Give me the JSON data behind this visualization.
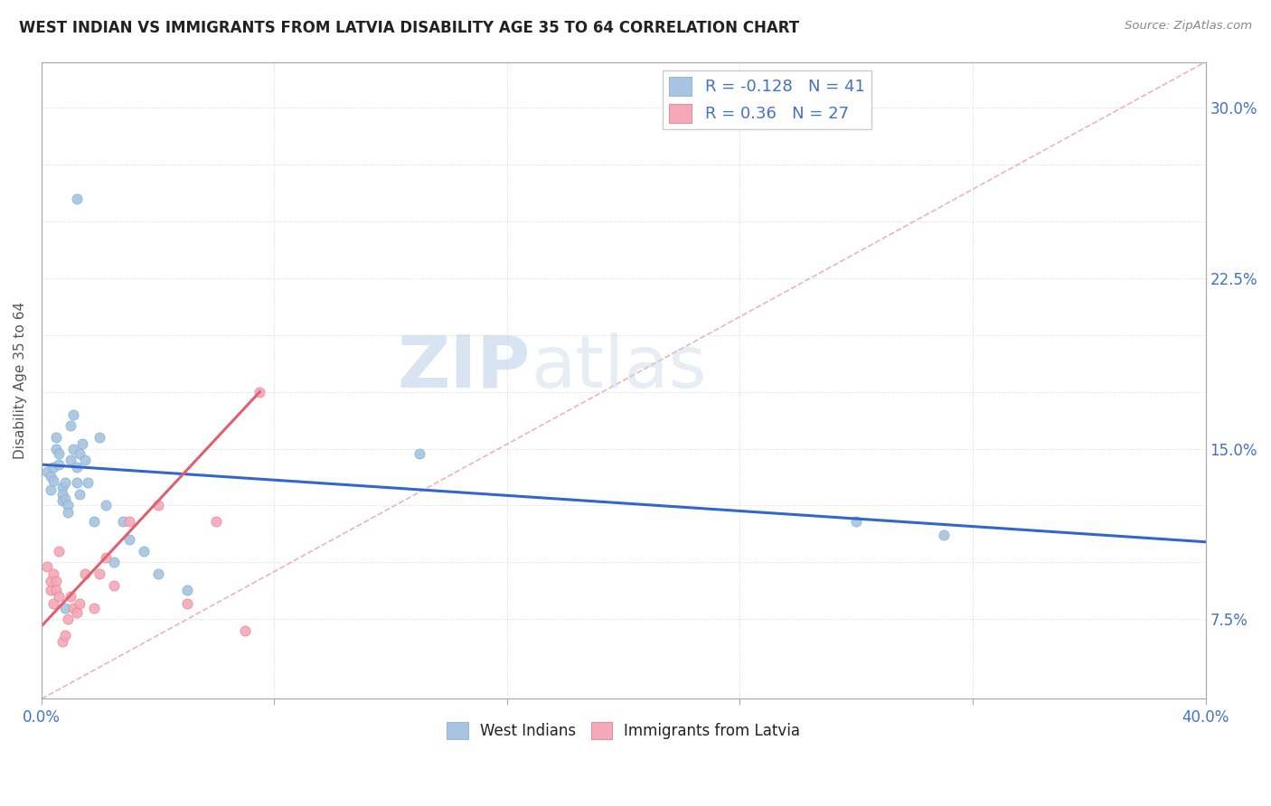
{
  "title": "WEST INDIAN VS IMMIGRANTS FROM LATVIA DISABILITY AGE 35 TO 64 CORRELATION CHART",
  "source": "Source: ZipAtlas.com",
  "ylabel": "Disability Age 35 to 64",
  "xlim": [
    0.0,
    0.4
  ],
  "ylim": [
    0.04,
    0.32
  ],
  "west_indians_R": -0.128,
  "west_indians_N": 41,
  "latvia_R": 0.36,
  "latvia_N": 27,
  "blue_color": "#a8c4e0",
  "blue_edge_color": "#7aadd4",
  "pink_color": "#f4a8b8",
  "pink_edge_color": "#e8808f",
  "blue_line_color": "#3366cc",
  "pink_line_color": "#e06070",
  "diag_line_color": "#e8a0a8",
  "wi_x": [
    0.002,
    0.003,
    0.003,
    0.004,
    0.004,
    0.005,
    0.005,
    0.006,
    0.006,
    0.007,
    0.007,
    0.007,
    0.008,
    0.008,
    0.009,
    0.009,
    0.01,
    0.01,
    0.011,
    0.011,
    0.012,
    0.012,
    0.013,
    0.013,
    0.014,
    0.015,
    0.016,
    0.018,
    0.02,
    0.022,
    0.025,
    0.028,
    0.03,
    0.035,
    0.04,
    0.05,
    0.13,
    0.28,
    0.31,
    0.012,
    0.008
  ],
  "wi_y": [
    0.14,
    0.138,
    0.132,
    0.142,
    0.136,
    0.15,
    0.155,
    0.148,
    0.143,
    0.133,
    0.13,
    0.127,
    0.135,
    0.128,
    0.125,
    0.122,
    0.145,
    0.16,
    0.165,
    0.15,
    0.142,
    0.135,
    0.13,
    0.148,
    0.152,
    0.145,
    0.135,
    0.118,
    0.155,
    0.125,
    0.1,
    0.118,
    0.11,
    0.105,
    0.095,
    0.088,
    0.148,
    0.118,
    0.112,
    0.26,
    0.08
  ],
  "lat_x": [
    0.002,
    0.003,
    0.003,
    0.004,
    0.004,
    0.005,
    0.005,
    0.006,
    0.006,
    0.007,
    0.008,
    0.009,
    0.01,
    0.011,
    0.012,
    0.013,
    0.015,
    0.018,
    0.02,
    0.022,
    0.025,
    0.03,
    0.04,
    0.05,
    0.06,
    0.07,
    0.075
  ],
  "lat_y": [
    0.098,
    0.088,
    0.092,
    0.082,
    0.095,
    0.092,
    0.088,
    0.105,
    0.085,
    0.065,
    0.068,
    0.075,
    0.085,
    0.08,
    0.078,
    0.082,
    0.095,
    0.08,
    0.095,
    0.102,
    0.09,
    0.118,
    0.125,
    0.082,
    0.118,
    0.07,
    0.175
  ],
  "blue_line_x0": 0.0,
  "blue_line_x1": 0.4,
  "blue_line_y0": 0.143,
  "blue_line_y1": 0.109,
  "pink_line_x0": 0.0,
  "pink_line_x1": 0.075,
  "pink_line_y0": 0.072,
  "pink_line_y1": 0.175
}
